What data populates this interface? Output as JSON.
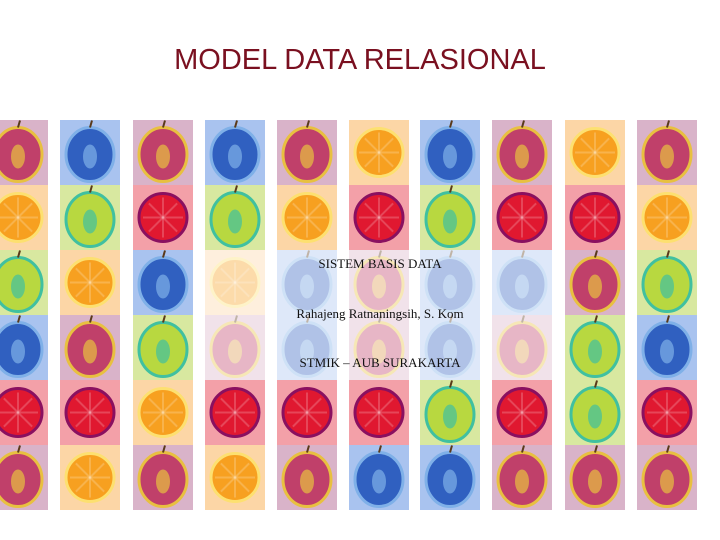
{
  "title": "MODEL DATA RELASIONAL",
  "lines": [
    "SISTEM BASIS DATA",
    "Rahajeng Ratnaningsih, S. Kom",
    "STMIK – AUB SURAKARTA"
  ]
}
